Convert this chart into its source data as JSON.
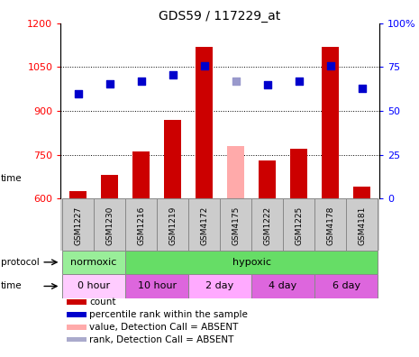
{
  "title": "GDS59 / 117229_at",
  "samples": [
    "GSM1227",
    "GSM1230",
    "GSM1216",
    "GSM1219",
    "GSM4172",
    "GSM4175",
    "GSM1222",
    "GSM1225",
    "GSM4178",
    "GSM4181"
  ],
  "bar_values": [
    625,
    680,
    760,
    870,
    1120,
    null,
    730,
    770,
    1120,
    640
  ],
  "bar_absent_values": [
    null,
    null,
    null,
    null,
    null,
    780,
    null,
    null,
    null,
    null
  ],
  "bar_color_normal": "#cc0000",
  "bar_color_absent": "#ffaaaa",
  "dot_values": [
    960,
    992,
    1002,
    1022,
    1055,
    null,
    988,
    1002,
    1055,
    978
  ],
  "dot_absent_values": [
    null,
    null,
    null,
    null,
    null,
    1002,
    null,
    null,
    null,
    null
  ],
  "dot_color_normal": "#0000cc",
  "dot_color_absent": "#9999cc",
  "ylim_left": [
    600,
    1200
  ],
  "ylim_right": [
    0,
    100
  ],
  "yticks_left": [
    600,
    750,
    900,
    1050,
    1200
  ],
  "yticks_right": [
    0,
    25,
    50,
    75,
    100
  ],
  "bar_width": 0.55,
  "proto_regions": [
    {
      "label": "normoxic",
      "start": 0,
      "end": 2,
      "color": "#99ee99"
    },
    {
      "label": "hypoxic",
      "start": 2,
      "end": 10,
      "color": "#66dd66"
    }
  ],
  "time_regions": [
    {
      "label": "0 hour",
      "start": 0,
      "end": 2,
      "color": "#ffccff"
    },
    {
      "label": "10 hour",
      "start": 2,
      "end": 4,
      "color": "#dd66dd"
    },
    {
      "label": "2 day",
      "start": 4,
      "end": 6,
      "color": "#ffaaff"
    },
    {
      "label": "4 day",
      "start": 6,
      "end": 8,
      "color": "#dd66dd"
    },
    {
      "label": "6 day",
      "start": 8,
      "end": 10,
      "color": "#dd66dd"
    }
  ],
  "sample_box_color": "#cccccc",
  "legend_items": [
    {
      "label": "count",
      "color": "#cc0000"
    },
    {
      "label": "percentile rank within the sample",
      "color": "#0000cc"
    },
    {
      "label": "value, Detection Call = ABSENT",
      "color": "#ffaaaa"
    },
    {
      "label": "rank, Detection Call = ABSENT",
      "color": "#aaaacc"
    }
  ]
}
